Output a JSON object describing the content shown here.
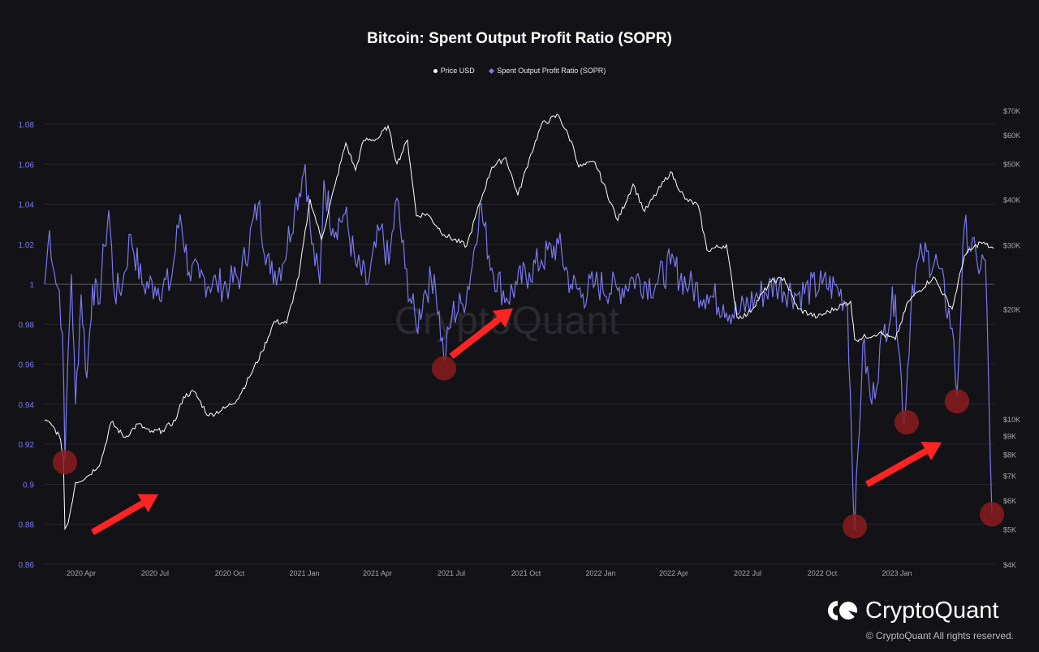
{
  "title": "Bitcoin: Spent Output Profit Ratio (SOPR)",
  "legend": [
    {
      "label": "Price USD",
      "color": "#ffffff",
      "marker": "circle"
    },
    {
      "label": "Spent Output Profit Ratio (SOPR)",
      "color": "#7b77f0",
      "marker": "diamond"
    }
  ],
  "watermark": "CryptoQuant",
  "brand": {
    "name": "CryptoQuant",
    "copyright": "© CryptoQuant All rights reserved."
  },
  "colors": {
    "sopr": "#7b77f0",
    "price": "#ffffff",
    "highlight": "#8b1c1c",
    "arrow": "#ff2424",
    "background": "#131317",
    "grid": "#2a2a30"
  },
  "chart_data": {
    "type": "line",
    "xlabel": "",
    "ylabel": "",
    "x_range": [
      "2020-02-16",
      "2023-05-01"
    ],
    "x_ticks": [
      "2020 Apr",
      "2020 Jul",
      "2020 Oct",
      "2021 Jan",
      "2021 Apr",
      "2021 Jul",
      "2021 Oct",
      "2022 Jan",
      "2022 Apr",
      "2022 Jul",
      "2022 Oct",
      "2023 Jan"
    ],
    "y_left": {
      "ticks": [
        "1.08",
        "1.06",
        "1.04",
        "1.02",
        "1",
        "0.98",
        "0.96",
        "0.94",
        "0.92",
        "0.9",
        "0.88",
        "0.86"
      ],
      "range": [
        0.86,
        1.085
      ]
    },
    "y_right": {
      "scale": "log",
      "ticks": [
        "$70K",
        "$60K",
        "$50K",
        "$40K",
        "$30K",
        "$20K",
        "$10K",
        "$9K",
        "$8K",
        "$7K",
        "$6K",
        "$5K",
        "$4K"
      ],
      "range": [
        4000,
        72000
      ]
    },
    "series": [
      {
        "name": "Price USD",
        "axis": "right",
        "points": [
          [
            "2020-02-16",
            9900
          ],
          [
            "2020-02-25",
            9600
          ],
          [
            "2020-03-05",
            9000
          ],
          [
            "2020-03-10",
            7900
          ],
          [
            "2020-03-12",
            5000
          ],
          [
            "2020-03-16",
            5200
          ],
          [
            "2020-03-25",
            6700
          ],
          [
            "2020-04-10",
            7000
          ],
          [
            "2020-04-25",
            7600
          ],
          [
            "2020-05-08",
            9800
          ],
          [
            "2020-05-25",
            8900
          ],
          [
            "2020-06-10",
            9700
          ],
          [
            "2020-06-25",
            9200
          ],
          [
            "2020-07-10",
            9300
          ],
          [
            "2020-07-26",
            9900
          ],
          [
            "2020-08-05",
            11500
          ],
          [
            "2020-08-18",
            11900
          ],
          [
            "2020-09-05",
            10200
          ],
          [
            "2020-09-25",
            10700
          ],
          [
            "2020-10-10",
            11300
          ],
          [
            "2020-10-25",
            13000
          ],
          [
            "2020-11-10",
            15300
          ],
          [
            "2020-11-25",
            18500
          ],
          [
            "2020-12-10",
            18300
          ],
          [
            "2020-12-25",
            24500
          ],
          [
            "2021-01-08",
            40000
          ],
          [
            "2021-01-22",
            31000
          ],
          [
            "2021-02-08",
            44000
          ],
          [
            "2021-02-21",
            57000
          ],
          [
            "2021-03-05",
            48000
          ],
          [
            "2021-03-15",
            58000
          ],
          [
            "2021-04-01",
            58500
          ],
          [
            "2021-04-14",
            63500
          ],
          [
            "2021-04-25",
            50000
          ],
          [
            "2021-05-08",
            58000
          ],
          [
            "2021-05-19",
            36000
          ],
          [
            "2021-06-01",
            36500
          ],
          [
            "2021-06-22",
            32000
          ],
          [
            "2021-07-20",
            29800
          ],
          [
            "2021-08-05",
            39000
          ],
          [
            "2021-08-20",
            49000
          ],
          [
            "2021-09-06",
            52000
          ],
          [
            "2021-09-21",
            41000
          ],
          [
            "2021-10-05",
            51500
          ],
          [
            "2021-10-20",
            64000
          ],
          [
            "2021-11-10",
            68000
          ],
          [
            "2021-11-28",
            56000
          ],
          [
            "2021-12-05",
            49000
          ],
          [
            "2021-12-25",
            50500
          ],
          [
            "2022-01-22",
            35000
          ],
          [
            "2022-02-10",
            44000
          ],
          [
            "2022-02-24",
            37000
          ],
          [
            "2022-03-28",
            47500
          ],
          [
            "2022-04-15",
            40000
          ],
          [
            "2022-05-01",
            38500
          ],
          [
            "2022-05-12",
            29000
          ],
          [
            "2022-06-05",
            30000
          ],
          [
            "2022-06-18",
            19000
          ],
          [
            "2022-07-01",
            19300
          ],
          [
            "2022-07-30",
            23800
          ],
          [
            "2022-08-15",
            24300
          ],
          [
            "2022-09-01",
            20000
          ],
          [
            "2022-09-25",
            19000
          ],
          [
            "2022-10-25",
            20500
          ],
          [
            "2022-11-05",
            21000
          ],
          [
            "2022-11-10",
            16500
          ],
          [
            "2022-12-10",
            17200
          ],
          [
            "2022-12-30",
            16500
          ],
          [
            "2023-01-15",
            21000
          ],
          [
            "2023-02-15",
            24500
          ],
          [
            "2023-03-10",
            20000
          ],
          [
            "2023-03-25",
            28000
          ],
          [
            "2023-04-14",
            30500
          ],
          [
            "2023-04-30",
            29300
          ]
        ]
      },
      {
        "name": "Spent Output Profit Ratio (SOPR)",
        "axis": "left",
        "points": [
          [
            "2020-02-16",
            1.0
          ],
          [
            "2020-02-22",
            1.027
          ],
          [
            "2020-03-01",
            1.0
          ],
          [
            "2020-03-05",
            0.997
          ],
          [
            "2020-03-09",
            0.975
          ],
          [
            "2020-03-12",
            0.912
          ],
          [
            "2020-03-16",
            0.967
          ],
          [
            "2020-03-20",
            1.005
          ],
          [
            "2020-03-25",
            0.94
          ],
          [
            "2020-04-01",
            0.995
          ],
          [
            "2020-04-08",
            0.953
          ],
          [
            "2020-04-15",
            1.0
          ],
          [
            "2020-04-22",
            0.99
          ],
          [
            "2020-04-30",
            1.019
          ],
          [
            "2020-05-05",
            1.037
          ],
          [
            "2020-05-12",
            0.995
          ],
          [
            "2020-05-22",
            1.0
          ],
          [
            "2020-06-01",
            1.025
          ],
          [
            "2020-06-15",
            1.0
          ],
          [
            "2020-07-01",
            0.999
          ],
          [
            "2020-07-20",
            1.0
          ],
          [
            "2020-08-01",
            1.035
          ],
          [
            "2020-08-12",
            1.006
          ],
          [
            "2020-08-25",
            1.003
          ],
          [
            "2020-09-15",
            1.0
          ],
          [
            "2020-10-01",
            1.0
          ],
          [
            "2020-10-15",
            1.005
          ],
          [
            "2020-11-05",
            1.04
          ],
          [
            "2020-11-20",
            1.005
          ],
          [
            "2020-12-05",
            1.01
          ],
          [
            "2020-12-20",
            1.038
          ],
          [
            "2021-01-02",
            1.06
          ],
          [
            "2021-01-10",
            1.02
          ],
          [
            "2021-01-20",
            1.0
          ],
          [
            "2021-01-25",
            1.052
          ],
          [
            "2021-02-05",
            1.028
          ],
          [
            "2021-02-20",
            1.035
          ],
          [
            "2021-03-05",
            1.01
          ],
          [
            "2021-03-20",
            1.0
          ],
          [
            "2021-04-05",
            1.028
          ],
          [
            "2021-04-15",
            1.01
          ],
          [
            "2021-04-25",
            1.043
          ],
          [
            "2021-05-05",
            1.008
          ],
          [
            "2021-05-19",
            0.978
          ],
          [
            "2021-05-28",
            0.995
          ],
          [
            "2021-06-10",
            1.005
          ],
          [
            "2021-06-22",
            0.962
          ],
          [
            "2021-07-02",
            0.985
          ],
          [
            "2021-07-15",
            0.99
          ],
          [
            "2021-07-25",
            1.005
          ],
          [
            "2021-08-05",
            1.04
          ],
          [
            "2021-08-20",
            1.008
          ],
          [
            "2021-09-07",
            0.993
          ],
          [
            "2021-09-20",
            1.0
          ],
          [
            "2021-10-05",
            1.006
          ],
          [
            "2021-10-20",
            1.012
          ],
          [
            "2021-11-10",
            1.02
          ],
          [
            "2021-11-25",
            1.0
          ],
          [
            "2021-12-10",
            0.995
          ],
          [
            "2021-12-25",
            1.0
          ],
          [
            "2022-01-22",
            0.997
          ],
          [
            "2022-02-10",
            1.003
          ],
          [
            "2022-03-10",
            1.0
          ],
          [
            "2022-03-28",
            1.01
          ],
          [
            "2022-04-20",
            0.999
          ],
          [
            "2022-05-12",
            0.995
          ],
          [
            "2022-06-01",
            0.99
          ],
          [
            "2022-06-18",
            0.985
          ],
          [
            "2022-07-10",
            0.993
          ],
          [
            "2022-08-05",
            1.0
          ],
          [
            "2022-09-01",
            0.995
          ],
          [
            "2022-10-01",
            1.0
          ],
          [
            "2022-10-20",
            0.998
          ],
          [
            "2022-11-01",
            0.99
          ],
          [
            "2022-11-10",
            0.877
          ],
          [
            "2022-11-20",
            0.97
          ],
          [
            "2022-12-01",
            0.94
          ],
          [
            "2022-12-15",
            0.975
          ],
          [
            "2022-12-30",
            0.995
          ],
          [
            "2023-01-10",
            0.93
          ],
          [
            "2023-01-20",
            1.0
          ],
          [
            "2023-02-01",
            1.015
          ],
          [
            "2023-02-20",
            1.01
          ],
          [
            "2023-03-10",
            0.978
          ],
          [
            "2023-03-16",
            0.944
          ],
          [
            "2023-03-25",
            1.029
          ],
          [
            "2023-04-10",
            1.01
          ],
          [
            "2023-04-20",
            1.012
          ],
          [
            "2023-04-28",
            0.885
          ]
        ]
      }
    ],
    "annotations": [
      {
        "type": "circle",
        "x": "2020-03-12",
        "y": 0.911,
        "color": "#8b1c1c"
      },
      {
        "type": "circle",
        "x": "2021-06-22",
        "y": 0.958,
        "color": "#8b1c1c"
      },
      {
        "type": "circle",
        "x": "2022-11-10",
        "y": 0.879,
        "color": "#8b1c1c"
      },
      {
        "type": "circle",
        "x": "2023-01-13",
        "y": 0.931,
        "color": "#8b1c1c"
      },
      {
        "type": "circle",
        "x": "2023-03-16",
        "y": 0.9415,
        "color": "#8b1c1c"
      },
      {
        "type": "circle",
        "x": "2023-04-28",
        "y": 0.885,
        "color": "#8b1c1c"
      },
      {
        "type": "arrow",
        "from": [
          "2020-04-15",
          0.876
        ],
        "to": [
          "2020-07-05",
          0.895
        ],
        "color": "#ff2424"
      },
      {
        "type": "arrow",
        "from": [
          "2021-07-01",
          0.964
        ],
        "to": [
          "2021-09-15",
          0.988
        ],
        "color": "#ff2424"
      },
      {
        "type": "arrow",
        "from": [
          "2022-11-25",
          0.9
        ],
        "to": [
          "2023-02-25",
          0.921
        ],
        "color": "#ff2424"
      }
    ]
  }
}
